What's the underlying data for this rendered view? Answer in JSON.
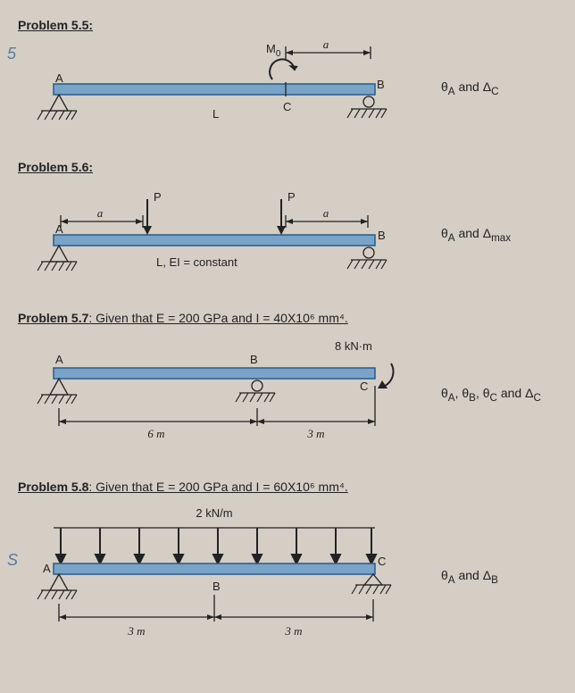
{
  "p55": {
    "title": "Problem 5.5:",
    "answer_html": "θ<sub>A</sub> and Δ<sub>C</sub>",
    "side": "5",
    "labels": {
      "A": "A",
      "B": "B",
      "C": "C",
      "L": "L",
      "M0": "M",
      "M0sub": "0",
      "a": "a"
    },
    "beam_color": "#7aa3c8",
    "beam_stroke": "#2a5a8a"
  },
  "p56": {
    "title": "Problem 5.6:",
    "answer_html": "θ<sub>A</sub> and Δ<sub>max</sub>",
    "labels": {
      "A": "A",
      "B": "B",
      "P": "P",
      "a": "a",
      "LEI": "L, EI = constant"
    }
  },
  "p57": {
    "title": "Problem 5.7",
    "given": ": Given that E = 200 GPa and I = 40X10⁶ mm⁴.",
    "answer_html": "θ<sub>A</sub>, θ<sub>B</sub>, θ<sub>C</sub> and Δ<sub>C</sub>",
    "labels": {
      "A": "A",
      "B": "B",
      "C": "C",
      "M": "8 kN·m",
      "d1": "6 m",
      "d2": "3 m"
    }
  },
  "p58": {
    "title": "Problem 5.8",
    "given": ": Given that E = 200 GPa and I = 60X10⁶ mm⁴.",
    "answer_html": "θ<sub>A</sub> and Δ<sub>B</sub>",
    "side": "S",
    "labels": {
      "A": "A",
      "B": "B",
      "C": "C",
      "w": "2 kN/m",
      "d1": "3 m",
      "d2": "3 m"
    }
  }
}
